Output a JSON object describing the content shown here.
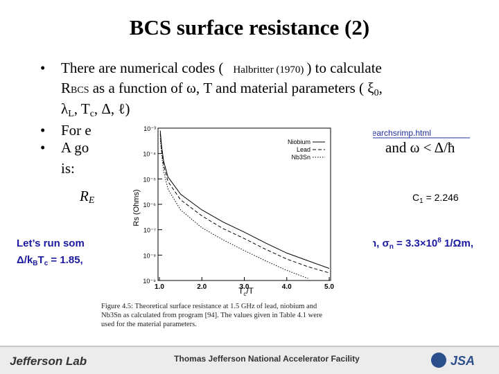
{
  "title": "BCS surface resistance (2)",
  "bullets": {
    "b1_a": "There are numerical codes (",
    "b1_ref": "Halbritter (1970)",
    "b1_b": ") to calculate",
    "b1_line2": "R",
    "b1_sub": "BCS",
    "b1_line2b": " as a function of  ω, T and material parameters (  ξ",
    "b1_xi": "0",
    "b1_comma": ",",
    "b1_line3": "λ",
    "b1_L": "L",
    "b1_line3b": ", T",
    "b1_c": "c",
    "b1_line3c": ", Δ, ℓ)",
    "b2": "For e",
    "b2_link": "e/researchsrimp.html",
    "b3": "A go",
    "b3_end": "and  ω < Δ/ħ",
    "b3_line2": "is:",
    "formula_start": "R",
    "formula_sub": "E",
    "formula_c1": "C",
    "formula_c1_sub": "1",
    "formula_c1_val": " = 2.246",
    "run_a": "Let’s run som",
    "run_b": "n, σ",
    "run_b_sub": "n",
    "run_b2": " = 3.3×10",
    "run_b_sup": "8",
    "run_b3": " 1/Ωm,",
    "run_line2": "Δ/k",
    "run_line2_sub": "B",
    "run_line2b": "T",
    "run_line2_sub2": "c",
    "run_line2c": " = 1.85,"
  },
  "figure": {
    "type": "line",
    "xlabel": "T",
    "xlabel_sub": "c",
    "xlabel_end": "/T",
    "ylabel": "Rs (Ohms)",
    "x": [
      1.02,
      1.05,
      1.1,
      1.2,
      1.5,
      2.0,
      2.5,
      3.0,
      3.5,
      4.0,
      4.5,
      5.0
    ],
    "series": [
      {
        "name": "Niobium",
        "color": "#000000",
        "style": "solid",
        "values": [
          0.0008,
          0.0002,
          5e-05,
          1.2e-05,
          2.5e-06,
          6e-07,
          2e-07,
          8e-08,
          3e-08,
          1.2e-08,
          6e-09,
          3e-09
        ]
      },
      {
        "name": "Lead",
        "color": "#000000",
        "style": "dashed",
        "values": [
          0.0006,
          0.00015,
          3.5e-05,
          8e-06,
          1.5e-06,
          3.5e-07,
          1.1e-07,
          4.5e-08,
          1.7e-08,
          7e-09,
          3.5e-09,
          2e-09
        ]
      },
      {
        "name": "Nb3Sn",
        "color": "#000000",
        "style": "dotted",
        "values": [
          0.0004,
          0.0001,
          2e-05,
          4e-06,
          6e-07,
          1.2e-07,
          4e-08,
          1.5e-08,
          6e-09,
          2.5e-09,
          1.2e-09,
          null
        ]
      }
    ],
    "xlim": [
      1,
      5
    ],
    "xticks": [
      {
        "value": 1,
        "label": "1.0"
      },
      {
        "value": 2,
        "label": "2.0"
      },
      {
        "value": 3,
        "label": "3.0"
      },
      {
        "value": 4,
        "label": "4.0"
      },
      {
        "value": 5,
        "label": "5.0"
      }
    ],
    "ylim": [
      1e-09,
      0.001
    ],
    "yticks": [
      {
        "value": 1e-09,
        "label": "10⁻⁹"
      },
      {
        "value": 1e-08,
        "label": "10⁻⁸"
      },
      {
        "value": 1e-07,
        "label": "10⁻⁷"
      },
      {
        "value": 1e-06,
        "label": "10⁻⁶"
      },
      {
        "value": 1e-05,
        "label": "10⁻⁵"
      },
      {
        "value": 0.0001,
        "label": "10⁻⁴"
      },
      {
        "value": 0.001,
        "label": "10⁻³"
      }
    ],
    "log_y": true,
    "legend": "upper right",
    "caption": [
      "Figure 4.5: Theoretical surface resistance at 1.5 GHz of lead, niobium and",
      "Nb3Sn as calculated from program [94]. The values given in Table 4.1 were",
      "used for the material parameters."
    ]
  },
  "footer": {
    "lab": "Jefferson Lab",
    "facility": "Thomas Jefferson National Accelerator Facility",
    "jsa": "JSA"
  }
}
